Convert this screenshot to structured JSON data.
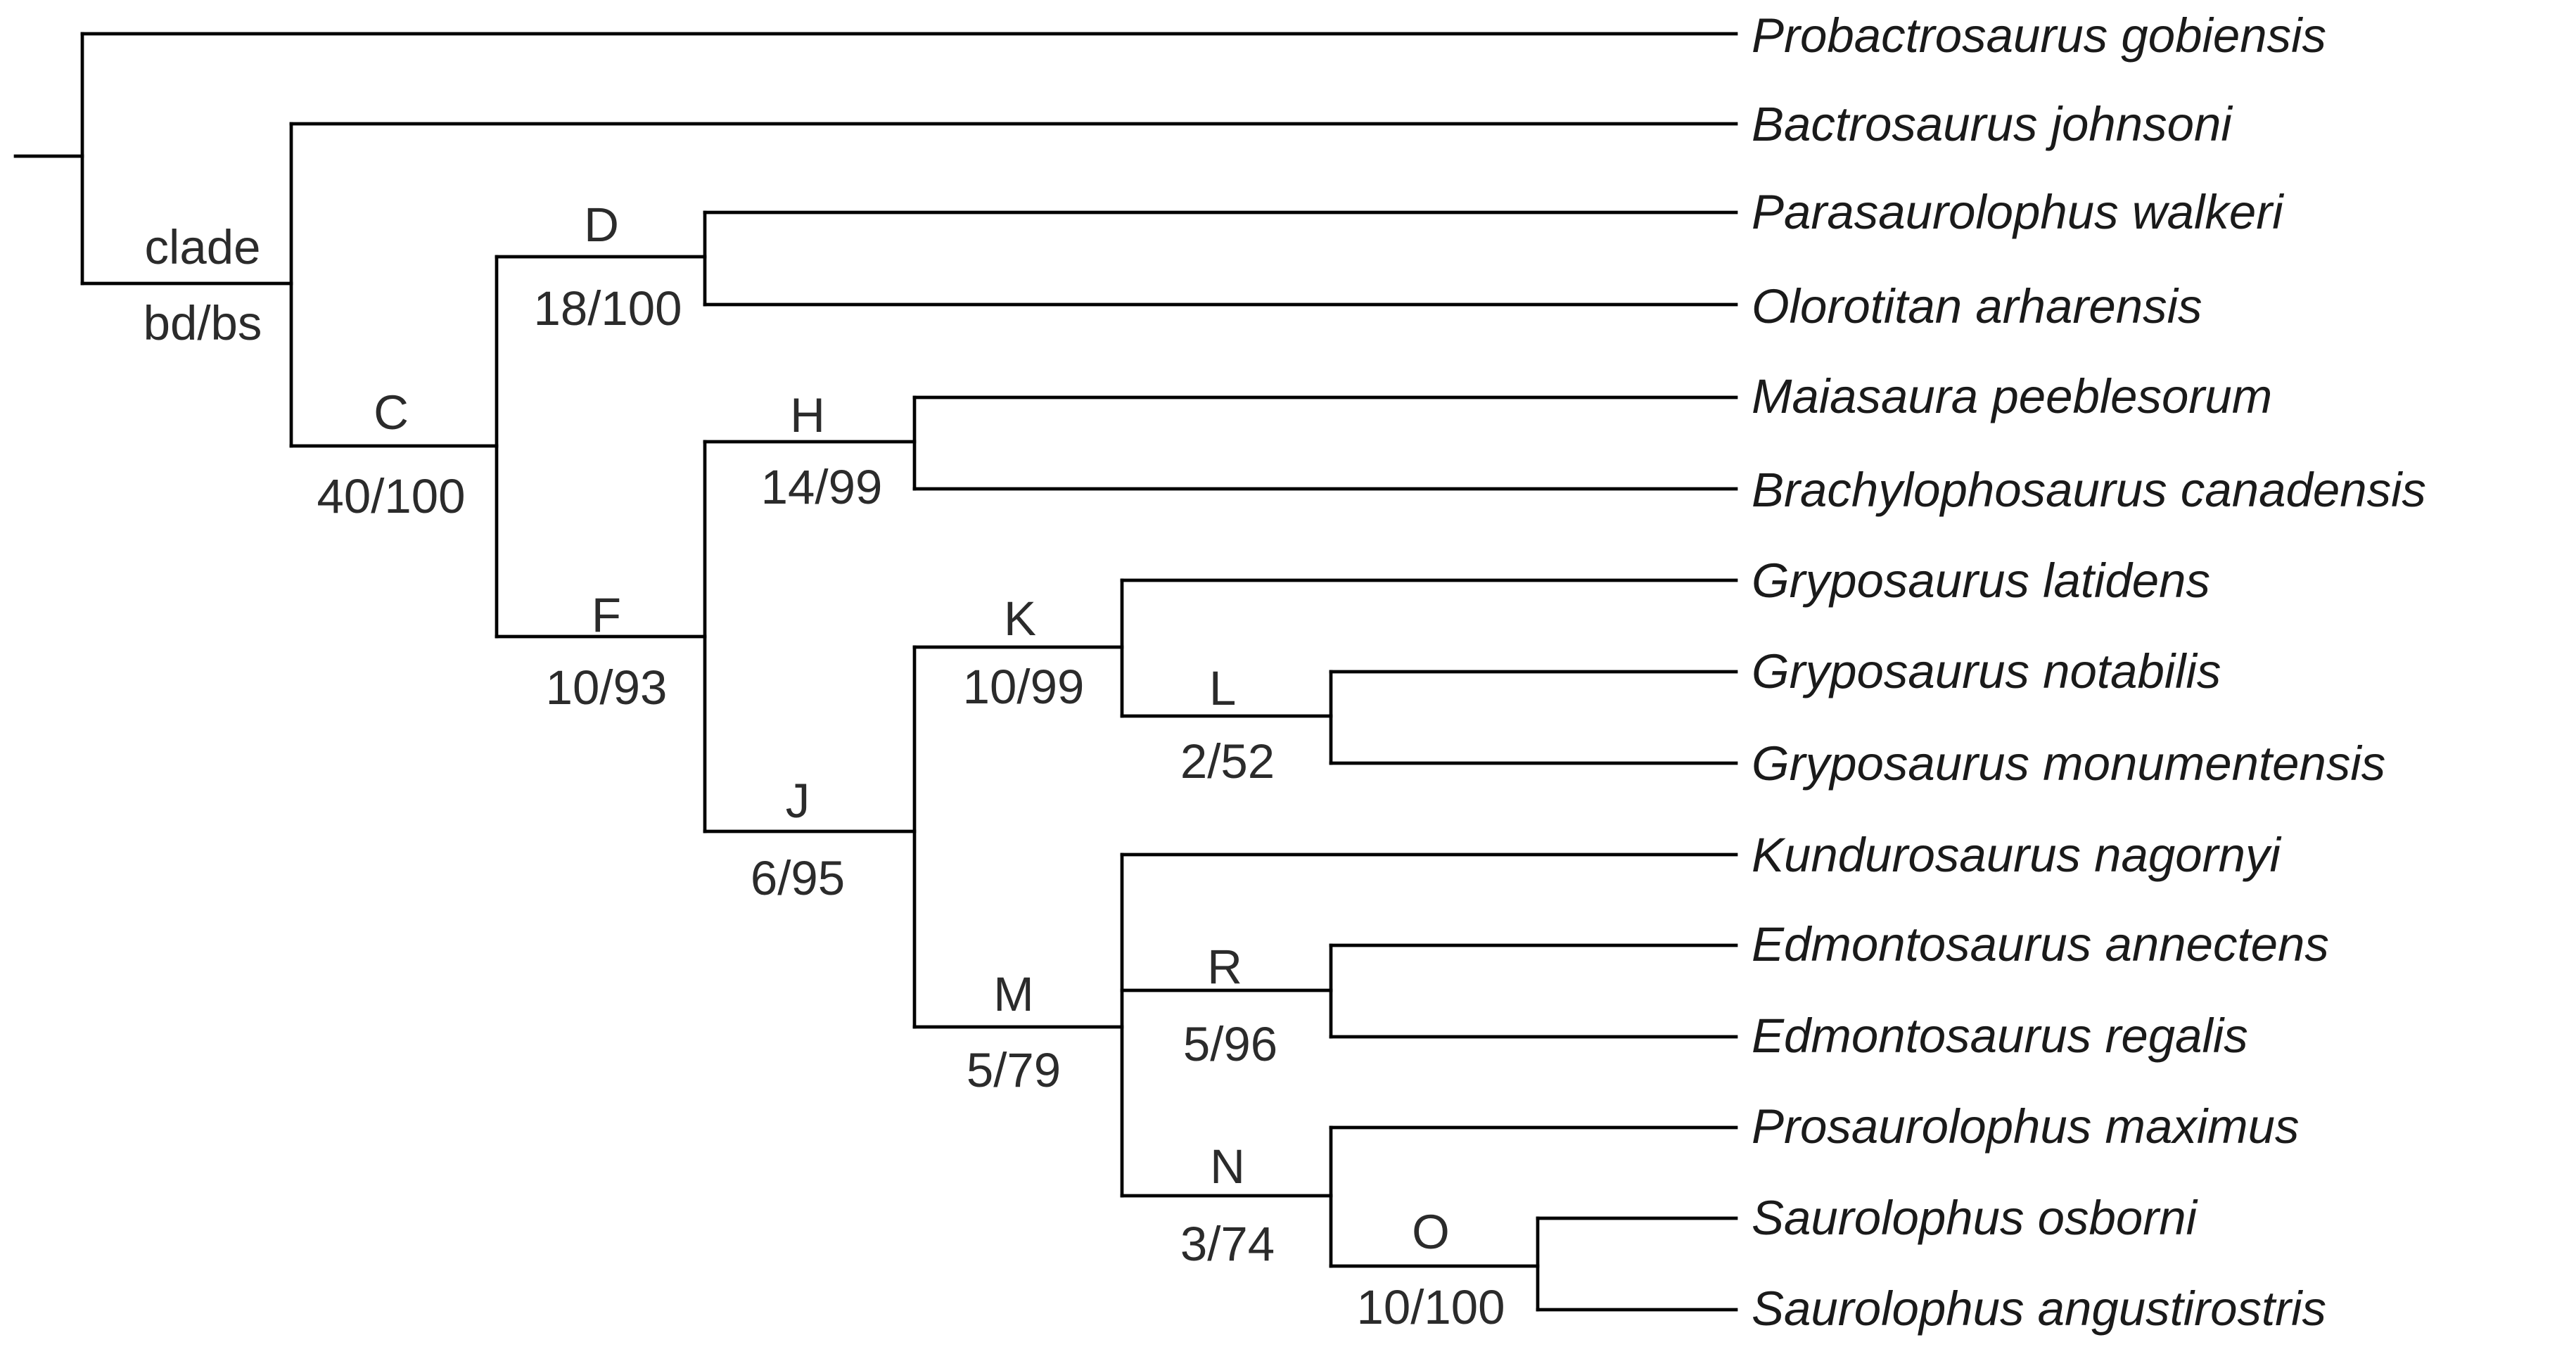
{
  "legend": {
    "clade_label": "clade",
    "support_label": "bd/bs"
  },
  "taxa": [
    "Probactrosaurus gobiensis",
    "Bactrosaurus johnsoni",
    "Parasaurolophus walkeri",
    "Olorotitan arharensis",
    "Maiasaura peeblesorum",
    "Brachylophosaurus canadensis",
    "Gryposaurus latidens",
    "Gryposaurus notabilis",
    "Gryposaurus monumentensis",
    "Kundurosaurus nagornyi",
    "Edmontosaurus annectens",
    "Edmontosaurus regalis",
    "Prosaurolophus maximus",
    "Saurolophus osborni",
    "Saurolophus angustirostris"
  ],
  "clades": [
    {
      "name": "C",
      "support": "40/100"
    },
    {
      "name": "D",
      "support": "18/100"
    },
    {
      "name": "F",
      "support": "10/93"
    },
    {
      "name": "H",
      "support": "14/99"
    },
    {
      "name": "J",
      "support": "6/95"
    },
    {
      "name": "K",
      "support": "10/99"
    },
    {
      "name": "L",
      "support": "2/52"
    },
    {
      "name": "M",
      "support": "5/79"
    },
    {
      "name": "R",
      "support": "5/96"
    },
    {
      "name": "N",
      "support": "3/74"
    },
    {
      "name": "O",
      "support": "10/100"
    }
  ]
}
